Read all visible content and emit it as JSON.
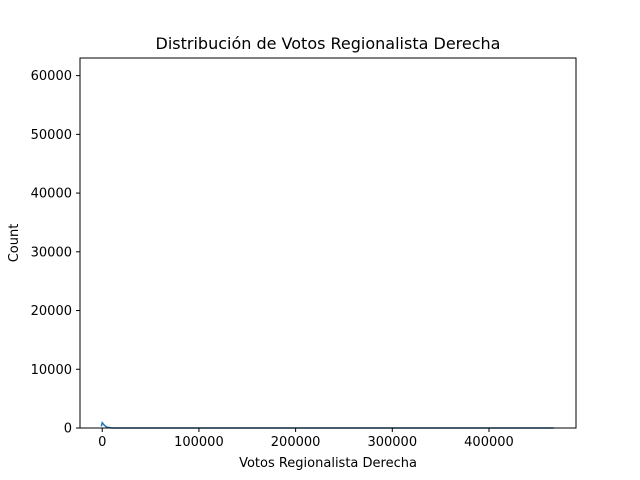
{
  "chart_data": {
    "type": "histogram",
    "title": "Distribución de Votos Regionalista Derecha",
    "xlabel": "Votos Regionalista Derecha",
    "ylabel": "Count",
    "xlim": [
      -23000,
      490000
    ],
    "ylim": [
      0,
      63000
    ],
    "xticks": [
      0,
      100000,
      200000,
      300000,
      400000
    ],
    "yticks": [
      0,
      10000,
      20000,
      30000,
      40000,
      50000,
      60000
    ],
    "xtick_labels": [
      "0",
      "100000",
      "200000",
      "300000",
      "400000"
    ],
    "ytick_labels": [
      "0",
      "10000",
      "20000",
      "30000",
      "40000",
      "50000",
      "60000"
    ],
    "grid": false,
    "series_color": "#1f77b4",
    "kde": {
      "x": [
        -1000,
        0,
        2000,
        5000,
        10000,
        50000,
        100000,
        200000,
        300000,
        400000,
        467000
      ],
      "y": [
        300,
        900,
        500,
        120,
        10,
        0,
        0,
        0,
        0,
        0,
        0
      ]
    }
  }
}
